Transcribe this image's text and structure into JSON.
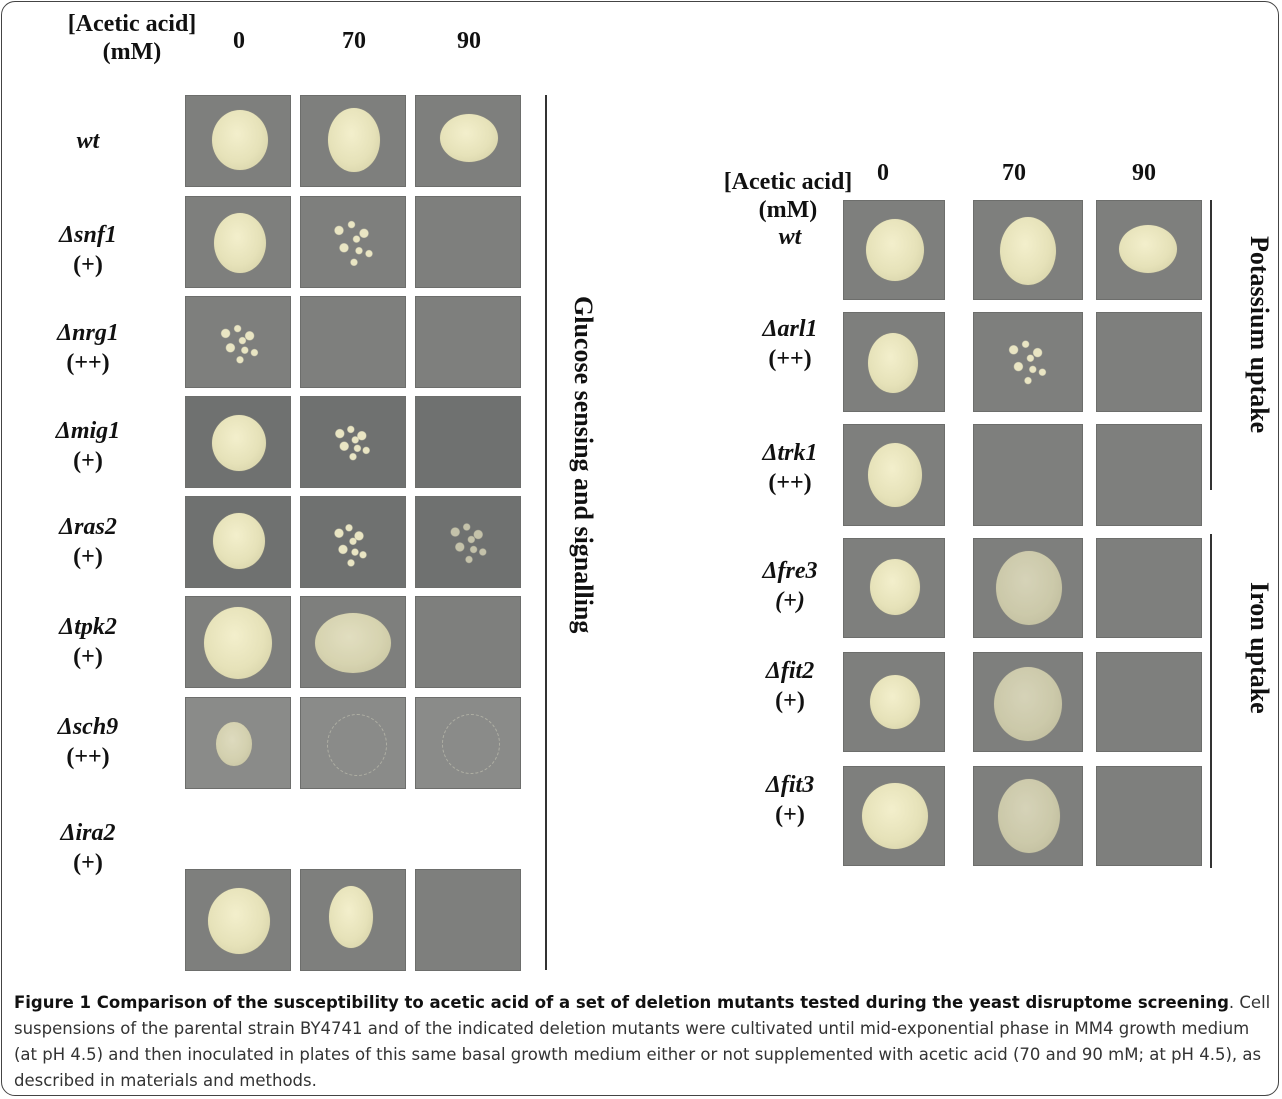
{
  "left_panel": {
    "axis_title_line1": "[Acetic acid]",
    "axis_title_line2": "(mM)",
    "concentrations": [
      "0",
      "70",
      "90"
    ],
    "group_label": "Glucose sensing and signalling",
    "strains": [
      {
        "name": "wt",
        "score": ""
      },
      {
        "name": "Δsnf1",
        "score": "(+)"
      },
      {
        "name": "Δnrg1",
        "score": "(++)"
      },
      {
        "name": "Δmig1",
        "score": "(+)"
      },
      {
        "name": "Δras2",
        "score": "(+)"
      },
      {
        "name": "Δtpk2",
        "score": "(+)"
      },
      {
        "name": "Δsch9",
        "score": "(++)"
      },
      {
        "name": "Δira2",
        "score": "(+)"
      }
    ]
  },
  "right_panel": {
    "axis_title_line1": "[Acetic acid]",
    "axis_title_line2": "(mM)",
    "concentrations": [
      "0",
      "70",
      "90"
    ],
    "group_label_top": "Potassium uptake",
    "group_label_bottom": "Iron uptake",
    "strains": [
      {
        "name": "wt",
        "score": ""
      },
      {
        "name": "Δarl1",
        "score": "(++)"
      },
      {
        "name": "Δtrk1",
        "score": "(++)"
      },
      {
        "name": "Δfre3",
        "score": "(+)"
      },
      {
        "name": "Δfit2",
        "score": "(+)"
      },
      {
        "name": "Δfit3",
        "score": "(+)"
      }
    ]
  },
  "caption": {
    "title": "Figure 1 Comparison of the susceptibility to acetic acid of a set of deletion mutants tested during the yeast disruptome screening",
    "title_end": ".",
    "body": "Cell suspensions of the parental strain BY4741 and of the indicated deletion mutants were cultivated until mid-exponential phase in MM4 growth medium (at pH 4.5) and then inoculated in plates of this same basal growth medium either or not supplemented with acetic acid (70 and 90 mM; at pH 4.5), as described in materials and methods."
  }
}
